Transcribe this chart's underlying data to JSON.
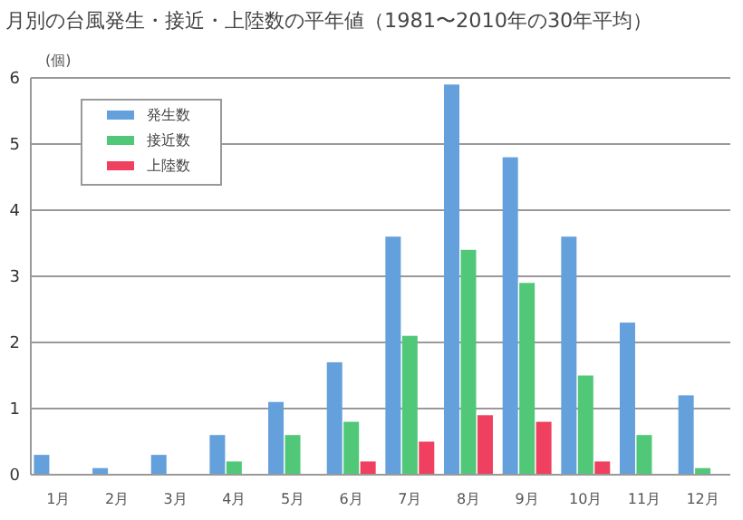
{
  "chart_data": {
    "type": "bar",
    "title": "月別の台風発生・接近・上陸数の平年値（1981〜2010年の30年平均）",
    "ylabel": "(個)",
    "categories": [
      "1月",
      "2月",
      "3月",
      "4月",
      "5月",
      "6月",
      "7月",
      "8月",
      "9月",
      "10月",
      "11月",
      "12月"
    ],
    "series": [
      {
        "name": "発生数",
        "color": "#64a0dc",
        "values": [
          0.3,
          0.1,
          0.3,
          0.6,
          1.1,
          1.7,
          3.6,
          5.9,
          4.8,
          3.6,
          2.3,
          1.2
        ]
      },
      {
        "name": "接近数",
        "color": "#50c878",
        "values": [
          0,
          0,
          0,
          0.2,
          0.6,
          0.8,
          2.1,
          3.4,
          2.9,
          1.5,
          0.6,
          0.1
        ]
      },
      {
        "name": "上陸数",
        "color": "#f04060",
        "values": [
          0,
          0,
          0,
          0,
          0,
          0.2,
          0.5,
          0.9,
          0.8,
          0.2,
          0,
          0
        ]
      }
    ],
    "ylim": [
      0,
      6
    ],
    "yticks": [
      0,
      1,
      2,
      3,
      4,
      5,
      6
    ],
    "grid": "y",
    "legend": "top left"
  }
}
